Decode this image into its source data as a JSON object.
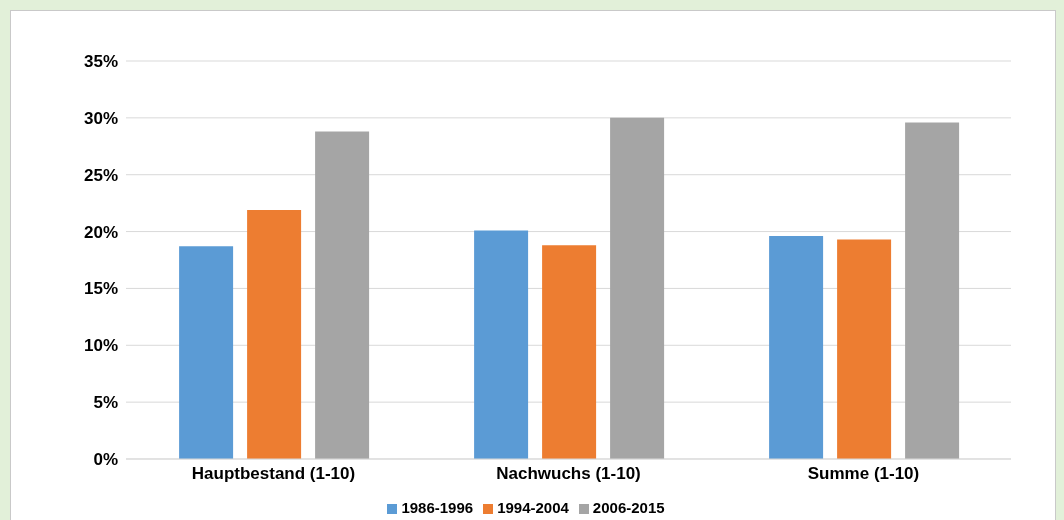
{
  "chart_data": {
    "type": "bar",
    "categories": [
      "Hauptbestand (1-10)",
      "Nachwuchs (1-10)",
      "Summe (1-10)"
    ],
    "series": [
      {
        "name": "1986-1996",
        "color": "#5b9bd5",
        "values": [
          18.7,
          20.1,
          19.6
        ]
      },
      {
        "name": "1994-2004",
        "color": "#ed7d31",
        "values": [
          21.9,
          18.8,
          19.3
        ]
      },
      {
        "name": "2006-2015",
        "color": "#a5a5a5",
        "values": [
          28.8,
          30.0,
          29.6
        ]
      }
    ],
    "ylim": [
      0,
      35
    ],
    "yticks": [
      {
        "value": 0,
        "label": "0%"
      },
      {
        "value": 5,
        "label": "5%"
      },
      {
        "value": 10,
        "label": "10%"
      },
      {
        "value": 15,
        "label": "15%"
      },
      {
        "value": 20,
        "label": "20%"
      },
      {
        "value": 25,
        "label": "25%"
      },
      {
        "value": 30,
        "label": "30%"
      },
      {
        "value": 35,
        "label": "35%"
      }
    ],
    "grid": "y",
    "legend": "bottom"
  }
}
